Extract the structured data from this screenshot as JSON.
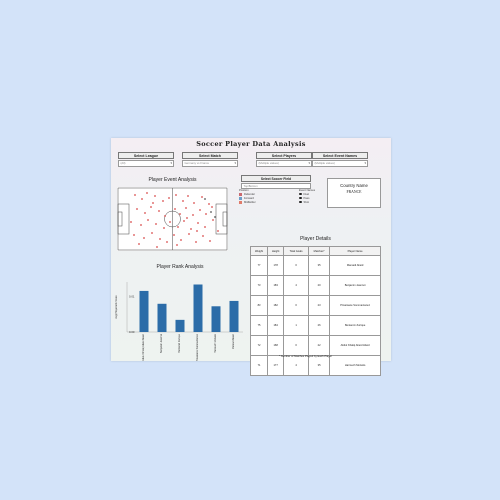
{
  "title": "Soccer Player Data Analysis",
  "filters": [
    {
      "label": "Select League",
      "value": "(All)"
    },
    {
      "label": "Select Match",
      "value": "Germany vs France"
    },
    {
      "label": "Select Players",
      "value": "(Multiple values)"
    },
    {
      "label": "Select Event Names",
      "value": "(Multiple values)"
    }
  ],
  "event_analysis": {
    "title": "Player Event Analysis"
  },
  "soccer_field_filter": {
    "label": "Select Soccer Field",
    "value": "Top/Bottom"
  },
  "legend": {
    "position_title": "Position",
    "positions": [
      {
        "label": "Defender",
        "color": "#c9696f"
      },
      {
        "label": "Forward",
        "color": "#6e9fc9"
      },
      {
        "label": "Midfielder",
        "color": "#e07b6a"
      }
    ],
    "events_title": "Event Names",
    "events": [
      "Duel",
      "Pass",
      "Shot"
    ]
  },
  "country": {
    "label": "Country Name",
    "value": "FRANCE"
  },
  "rank_analysis": {
    "title": "Player Rank Analysis"
  },
  "details": {
    "title": "Player Details",
    "columns": [
      "Weight",
      "Height",
      "Total Goals",
      "Matches*",
      "Player Name"
    ],
    "rows": [
      [
        "77",
        "178",
        "0",
        "35",
        "Mamadi Abeid"
      ],
      [
        "73",
        "183",
        "4",
        "20",
        "Benjamin Jeannot"
      ],
      [
        "83",
        "182",
        "0",
        "23",
        "Privatoane Sommantanez"
      ],
      [
        "75",
        "184",
        "1",
        "26",
        "Beniamin Zurique"
      ],
      [
        "72",
        "168",
        "0",
        "22",
        "Abdul Khaliq Abeid Abeid"
      ],
      [
        "71",
        "177",
        "4",
        "35",
        "Harrouch Motsolo"
      ]
    ],
    "footnote": "* Number of Matches Played by Each Player"
  },
  "chart_data": {
    "type": "bar",
    "title": "Player Rank Analysis",
    "ylabel": "Avg(Playerrank Score",
    "yticks": [
      "0.01",
      "0.00"
    ],
    "categories": [
      "Abdul Khaliq Abeid Abeid",
      "Benjamin Jeannot",
      "Beniamin Zurique",
      "Privatoane Sommantanez",
      "Harrouch Motsolo",
      "Mamadi Abeid"
    ],
    "values": [
      0.0115,
      0.0079,
      0.0034,
      0.0133,
      0.0072,
      0.0087
    ],
    "ylim": [
      0,
      0.014
    ],
    "color": "#2b6ca8"
  }
}
